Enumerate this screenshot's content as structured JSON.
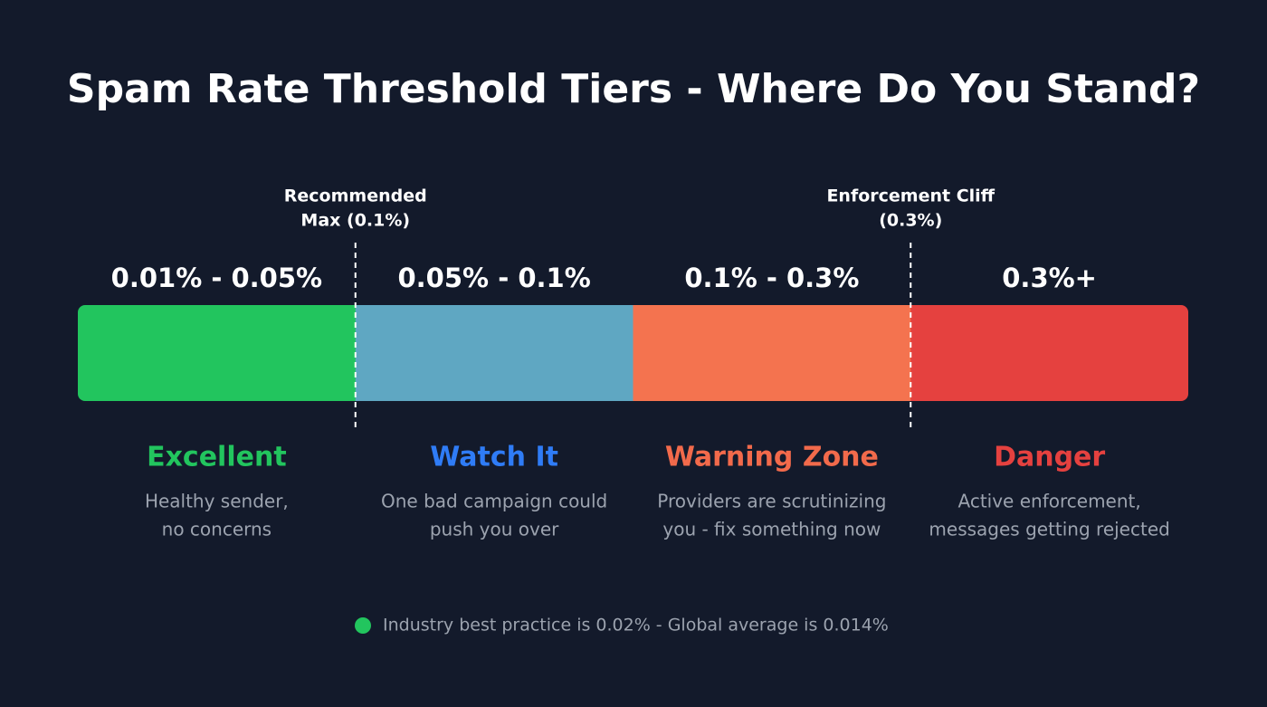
{
  "header": {
    "title": "Spam Rate Threshold Tiers - Where Do You Stand?"
  },
  "markers": [
    {
      "lines": [
        "Recommended",
        "Max (0.1%)"
      ]
    },
    {
      "lines": [
        "Enforcement Cliff",
        "(0.3%)"
      ]
    }
  ],
  "tiers": [
    {
      "range": "0.01% - 0.05%",
      "name": "Excellent",
      "description": [
        "Healthy sender,",
        "no concerns"
      ],
      "bar_color": "#22c55e",
      "name_color": "#22c55e"
    },
    {
      "range": "0.05% - 0.1%",
      "name": "Watch It",
      "description": [
        "One bad campaign could",
        "push you over"
      ],
      "bar_color": "#5fa7c2",
      "name_color": "#2f7cf6"
    },
    {
      "range": "0.1% - 0.3%",
      "name": "Warning Zone",
      "description": [
        "Providers are scrutinizing",
        "you - fix something now"
      ],
      "bar_color": "#f4734f",
      "name_color": "#f26a4b"
    },
    {
      "range": "0.3%+",
      "name": "Danger",
      "description": [
        "Active enforcement,",
        "messages getting rejected"
      ],
      "bar_color": "#e5413f",
      "name_color": "#e5413f"
    }
  ],
  "footnote": {
    "text": "Industry best practice is 0.02% - Global average is 0.014%",
    "dot_color": "#22c55e"
  }
}
